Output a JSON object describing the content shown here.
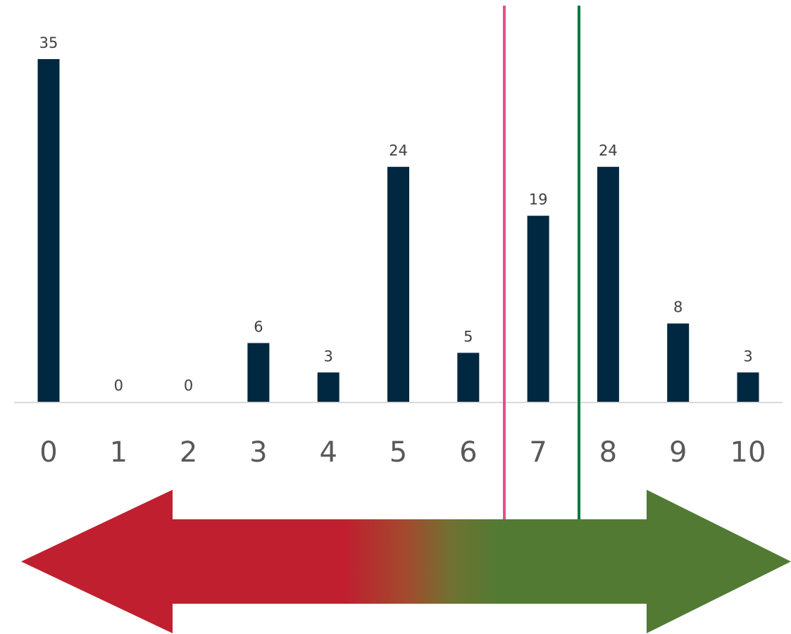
{
  "chart_data": {
    "type": "bar",
    "categories": [
      "0",
      "1",
      "2",
      "3",
      "4",
      "5",
      "6",
      "7",
      "8",
      "9",
      "10"
    ],
    "values": [
      35,
      0,
      0,
      6,
      3,
      24,
      5,
      19,
      24,
      8,
      3
    ],
    "data_labels": [
      "35",
      "0",
      "0",
      "6",
      "3",
      "24",
      "5",
      "19",
      "24",
      "8",
      "3"
    ],
    "title": "",
    "xlabel": "",
    "ylabel": "",
    "ylim": [
      0,
      35
    ],
    "grid": false,
    "legend": "none",
    "bar_color": "#002840",
    "axis_color": "#d9d9d9",
    "reference_lines": [
      {
        "x": 7.5,
        "color": "#e0528a"
      },
      {
        "x": 7.55,
        "color": "#007a3d"
      }
    ],
    "scale_arrow": {
      "direction": "both",
      "colors": [
        "#c01f2f",
        "#c01f2f",
        "#a34a2e",
        "#6f7232",
        "#527a33",
        "#527a33"
      ]
    }
  }
}
